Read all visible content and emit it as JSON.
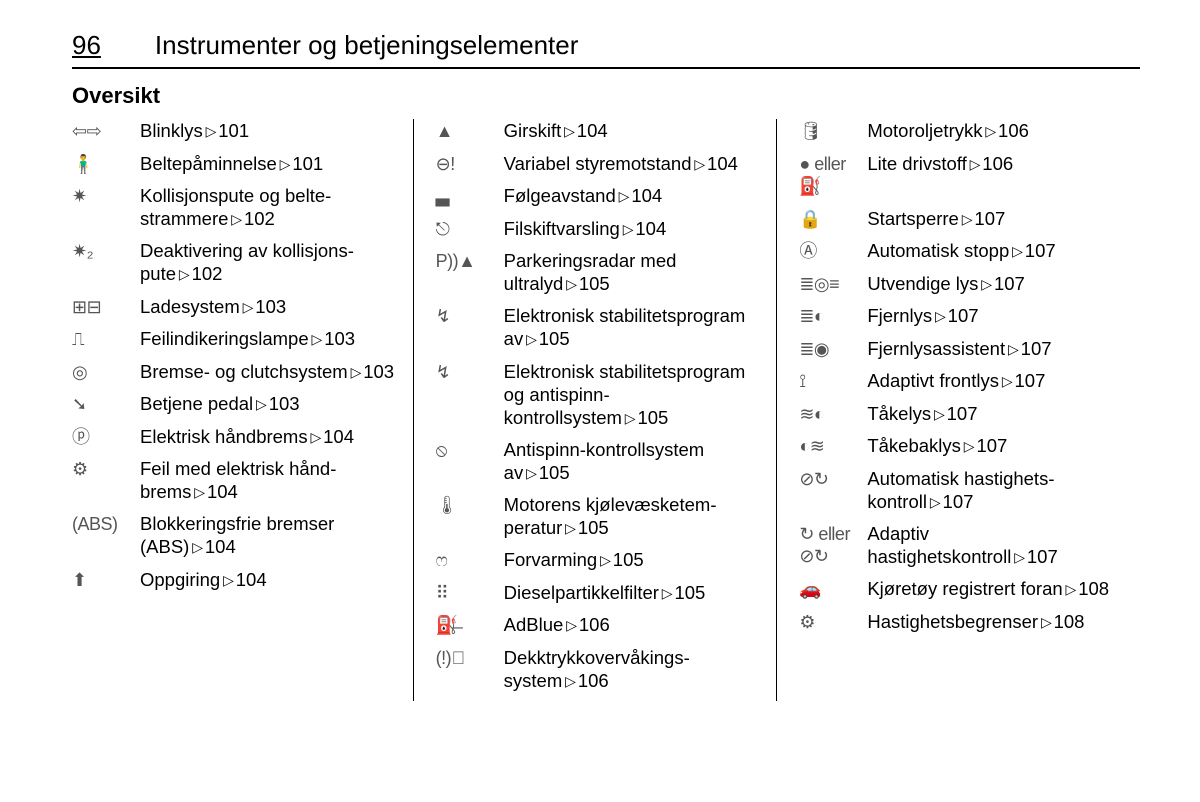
{
  "page_number": "96",
  "chapter_title": "Instrumenter og betjeningselementer",
  "section_title": "Oversikt",
  "columns": [
    [
      {
        "icon": "⇦⇨",
        "label": "Blinklys",
        "ref": "101"
      },
      {
        "icon": "🧍‍♂️",
        "label": "Beltepåminnelse",
        "ref": "101"
      },
      {
        "icon": "✷",
        "label": "Kollisjonspute og belte­strammere",
        "ref": "102"
      },
      {
        "icon": "✷₂",
        "label": "Deaktivering av kollisjons­pute",
        "ref": "102"
      },
      {
        "icon": "⊞⊟",
        "label": "Ladesystem",
        "ref": "103"
      },
      {
        "icon": "⎍",
        "label": "Feilindikeringslampe",
        "ref": "103"
      },
      {
        "icon": "◎",
        "label": "Bremse- og clutchsystem",
        "ref": "103"
      },
      {
        "icon": "➘",
        "label": "Betjene pedal",
        "ref": "103"
      },
      {
        "icon": "ⓟ",
        "label": "Elektrisk håndbrems",
        "ref": "104"
      },
      {
        "icon": "⚙",
        "label": "Feil med elektrisk hånd­brems",
        "ref": "104"
      },
      {
        "icon": "(ABS)",
        "label": "Blokkeringsfrie bremser (ABS)",
        "ref": "104"
      },
      {
        "icon": "⬆",
        "label": "Oppgiring",
        "ref": "104"
      }
    ],
    [
      {
        "icon": "▲",
        "label": "Girskift",
        "ref": "104"
      },
      {
        "icon": "⊖!",
        "label": "Variabel styremotstand",
        "ref": "104"
      },
      {
        "icon": "▃",
        "label": "Følgeavstand",
        "ref": "104"
      },
      {
        "icon": "⎋",
        "label": "Filskiftvarsling",
        "ref": "104"
      },
      {
        "icon": "P))▲",
        "label": "Parkeringsradar med ultralyd",
        "ref": "105"
      },
      {
        "icon": "↯",
        "label": "Elektronisk stabilitetspro­gram av",
        "ref": "105"
      },
      {
        "icon": "↯",
        "label": "Elektronisk stabilitetspro­gram og antispinn­kontrollsystem",
        "ref": "105"
      },
      {
        "icon": "⦸",
        "label": "Antispinn-kontrollsystem av",
        "ref": "105"
      },
      {
        "icon": "🌡",
        "label": "Motorens kjølevæsketem­peratur",
        "ref": "105"
      },
      {
        "icon": "ෆ",
        "label": "Forvarming",
        "ref": "105"
      },
      {
        "icon": "⠿",
        "label": "Dieselpartikkelfilter",
        "ref": "105"
      },
      {
        "icon": "⛽̶",
        "label": "AdBlue",
        "ref": "106"
      },
      {
        "icon": "(!)⃝",
        "label": "Dekktrykkovervåkings­system",
        "ref": "106"
      }
    ],
    [
      {
        "icon": "🛢",
        "label": "Motoroljetrykk",
        "ref": "106"
      },
      {
        "icon": "● eller ⛽",
        "label": "Lite drivstoff",
        "ref": "106"
      },
      {
        "icon": "🔒",
        "label": "Startsperre",
        "ref": "107"
      },
      {
        "icon": "Ⓐ",
        "label": "Automatisk stopp",
        "ref": "107"
      },
      {
        "icon": "≣◎≡",
        "label": "Utvendige lys",
        "ref": "107"
      },
      {
        "icon": "≣◐",
        "label": "Fjernlys",
        "ref": "107"
      },
      {
        "icon": "≣◉",
        "label": "Fjernlysassistent",
        "ref": "107"
      },
      {
        "icon": "⟟",
        "label": "Adaptivt frontlys",
        "ref": "107"
      },
      {
        "icon": "≋◐",
        "label": "Tåkelys",
        "ref": "107"
      },
      {
        "icon": "◐≋",
        "label": "Tåkebaklys",
        "ref": "107"
      },
      {
        "icon": "⊘↻",
        "label": "Automatisk hastig­hets­kontroll",
        "ref": "107"
      },
      {
        "icon": "↻ eller ⊘↻",
        "label": "Adaptiv hastighetskontroll",
        "ref": "107"
      },
      {
        "icon": "🚗",
        "label": "Kjøretøy registrert foran",
        "ref": "108"
      },
      {
        "icon": "⚙",
        "label": "Hastighetsbegrenser",
        "ref": "108"
      }
    ]
  ]
}
